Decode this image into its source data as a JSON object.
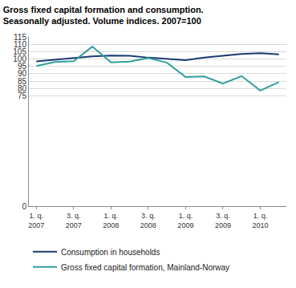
{
  "chart_data": {
    "type": "line",
    "title": "Gross fixed capital formation and consumption.\nSeasonally adjusted. Volume indices. 2007=100",
    "categories": [
      "1. q. 2007",
      null,
      "3. q. 2007",
      null,
      "1. q. 2008",
      null,
      "3. q. 2008",
      null,
      "1. q. 2009",
      null,
      "3. q. 2009",
      null,
      "1. q. 2010",
      null
    ],
    "series": [
      {
        "name": "Consumption in households",
        "color": "#1b3b72",
        "values": [
          98.4,
          99.4,
          100.4,
          101.8,
          102.3,
          102.2,
          100.9,
          99.9,
          99.2,
          101.0,
          102.2,
          103.4,
          103.9,
          103.2
        ]
      },
      {
        "name": "Gross fixed capital formation, Mainland-Norway",
        "color": "#2f9f9c",
        "values": [
          95.2,
          97.9,
          98.5,
          108.4,
          97.7,
          98.3,
          100.7,
          97.5,
          87.7,
          88.1,
          83.3,
          88.4,
          78.6,
          84.3
        ]
      }
    ],
    "ylim": [
      0,
      115
    ],
    "yticks": [
      0,
      75,
      80,
      85,
      90,
      95,
      100,
      105,
      110,
      115
    ],
    "grid": true,
    "legend": "bottom"
  }
}
